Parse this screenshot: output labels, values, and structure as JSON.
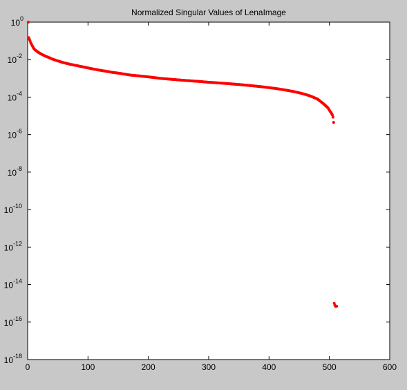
{
  "chart_data": {
    "type": "scatter",
    "title": "Normalized Singular Values of LenaImage",
    "xlabel": "",
    "ylabel": "",
    "xlim": [
      0,
      600
    ],
    "ylim": [
      1e-18,
      1
    ],
    "yscale": "log",
    "xticks": [
      0,
      100,
      200,
      300,
      400,
      500,
      600
    ],
    "yticks": [
      {
        "base": "10",
        "exp": "0",
        "value": 1
      },
      {
        "base": "10",
        "exp": "-2",
        "value": 0.01
      },
      {
        "base": "10",
        "exp": "-4",
        "value": 0.0001
      },
      {
        "base": "10",
        "exp": "-6",
        "value": 1e-06
      },
      {
        "base": "10",
        "exp": "-8",
        "value": 1e-08
      },
      {
        "base": "10",
        "exp": "-10",
        "value": 1e-10
      },
      {
        "base": "10",
        "exp": "-12",
        "value": 1e-12
      },
      {
        "base": "10",
        "exp": "-14",
        "value": 1e-14
      },
      {
        "base": "10",
        "exp": "-16",
        "value": 1e-16
      },
      {
        "base": "10",
        "exp": "-18",
        "value": 1e-18
      }
    ],
    "grid": false,
    "marker_color": "#ff0000",
    "series": [
      {
        "x": [
          1,
          2,
          3,
          4,
          5,
          6,
          7,
          8,
          9,
          10,
          12,
          14,
          16,
          18,
          20,
          25,
          30,
          35,
          40,
          50,
          60,
          70,
          80,
          90,
          100,
          110,
          120,
          130,
          140,
          150,
          160,
          170,
          180,
          190,
          200,
          210,
          220,
          230,
          240,
          250,
          260,
          270,
          280,
          290,
          300,
          310,
          320,
          330,
          340,
          350,
          360,
          370,
          380,
          390,
          400,
          410,
          420,
          430,
          440,
          450,
          460,
          470,
          480,
          485,
          490,
          495,
          498,
          500,
          502,
          504,
          505,
          506,
          507,
          508,
          509,
          510,
          511,
          512
        ],
        "y": [
          1,
          0.15,
          0.12,
          0.1,
          0.08,
          0.07,
          0.06,
          0.052,
          0.046,
          0.04,
          0.034,
          0.03,
          0.027,
          0.024,
          0.022,
          0.018,
          0.015,
          0.013,
          0.011,
          0.0085,
          0.0068,
          0.0057,
          0.0049,
          0.0042,
          0.0036,
          0.0031,
          0.0027,
          0.0024,
          0.0021,
          0.0019,
          0.0017,
          0.0015,
          0.0014,
          0.0013,
          0.0012,
          0.0011,
          0.001,
          0.00094,
          0.00088,
          0.00083,
          0.00078,
          0.00074,
          0.0007,
          0.00066,
          0.00062,
          0.00059,
          0.00056,
          0.00053,
          0.0005,
          0.00047,
          0.00044,
          0.00041,
          0.00038,
          0.00035,
          0.00032,
          0.00029,
          0.00026,
          0.00023,
          0.0002,
          0.00017,
          0.00014,
          0.00011,
          8e-05,
          6e-05,
          4.5e-05,
          3.2e-05,
          2.6e-05,
          2e-05,
          1.6e-05,
          1.3e-05,
          1.1e-05,
          8.5e-06,
          4.5e-06,
          1e-15,
          8e-16,
          7e-16,
          7e-16,
          7e-16
        ]
      }
    ]
  }
}
